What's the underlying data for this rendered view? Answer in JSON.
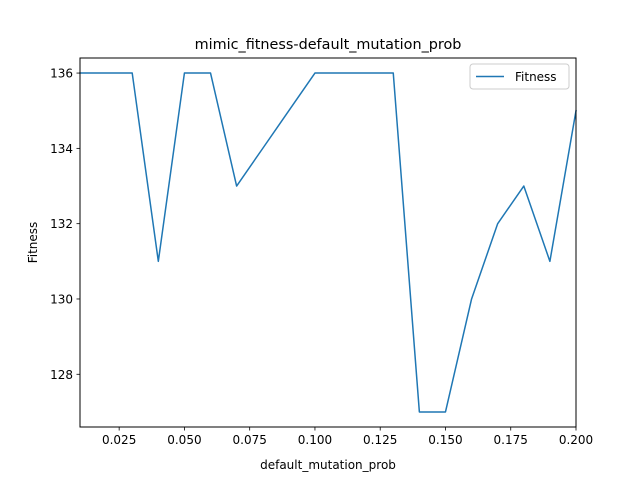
{
  "chart_data": {
    "type": "line",
    "title": "mimic_fitness-default_mutation_prob",
    "xlabel": "default_mutation_prob",
    "ylabel": "Fitness",
    "xlim": [
      0.01,
      0.2
    ],
    "ylim": [
      126.6,
      136.4
    ],
    "xticks": [
      0.025,
      0.05,
      0.075,
      0.1,
      0.125,
      0.15,
      0.175,
      0.2
    ],
    "xtick_labels": [
      "0.025",
      "0.050",
      "0.075",
      "0.100",
      "0.125",
      "0.150",
      "0.175",
      "0.200"
    ],
    "yticks": [
      128,
      130,
      132,
      134,
      136
    ],
    "ytick_labels": [
      "128",
      "130",
      "132",
      "134",
      "136"
    ],
    "grid": false,
    "legend_position": "top-right",
    "series": [
      {
        "name": "Fitness",
        "color": "#1f77b4",
        "x": [
          0.01,
          0.02,
          0.03,
          0.04,
          0.05,
          0.06,
          0.07,
          0.08,
          0.09,
          0.1,
          0.11,
          0.12,
          0.13,
          0.14,
          0.15,
          0.16,
          0.17,
          0.18,
          0.19,
          0.2
        ],
        "y": [
          136,
          136,
          136,
          131,
          136,
          136,
          133,
          134,
          135,
          136,
          136,
          136,
          136,
          127,
          127,
          130,
          132,
          133,
          131,
          135
        ]
      }
    ]
  }
}
